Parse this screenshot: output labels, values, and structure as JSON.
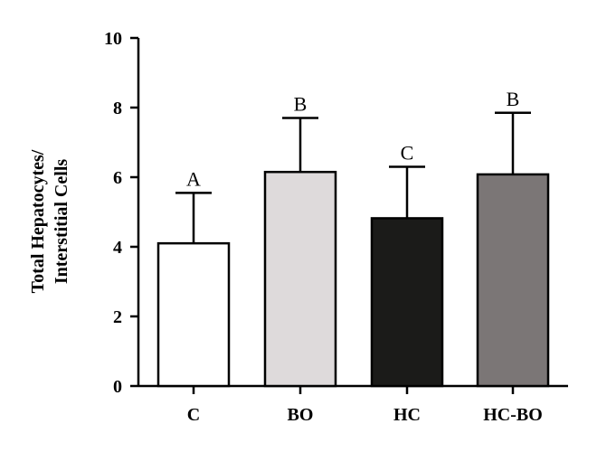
{
  "chart_data": {
    "type": "bar",
    "categories": [
      "C",
      "BO",
      "HC",
      "HC-BO"
    ],
    "values": [
      4.1,
      6.15,
      4.82,
      6.08
    ],
    "error_upper": [
      5.55,
      7.7,
      6.3,
      7.85
    ],
    "significance_labels": [
      "A",
      "B",
      "C",
      "B"
    ],
    "bar_colors": [
      "#ffffff",
      "#dedadb",
      "#1b1b19",
      "#7b7676"
    ],
    "ylabel_lines": [
      "Total Hepatocytes/",
      "Interstitial Cells"
    ],
    "ylim": [
      0,
      10
    ],
    "yticks": [
      "0",
      "2",
      "4",
      "6",
      "8",
      "10"
    ],
    "grid": false
  }
}
